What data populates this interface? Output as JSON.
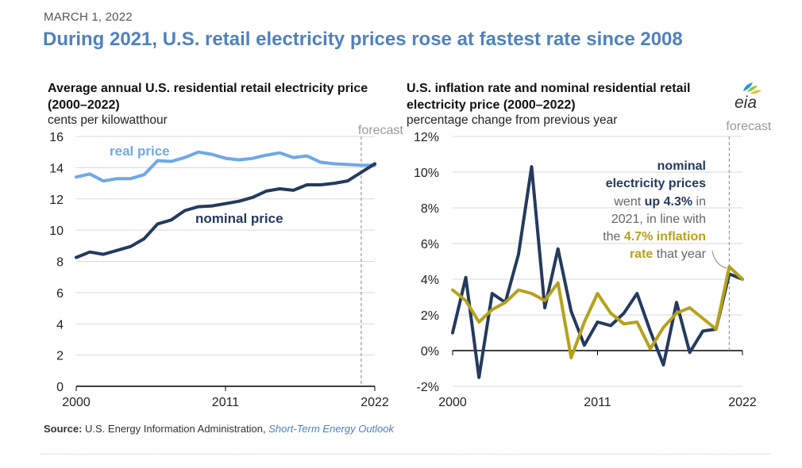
{
  "header": {
    "date": "MARCH 1, 2022",
    "headline": "During 2021, U.S. retail electricity prices rose at fastest rate since 2008"
  },
  "logo": {
    "text": "eia",
    "icon": "eia-logo-icon",
    "colors": [
      "#1f9ad6",
      "#8dc63f",
      "#f7b32b"
    ]
  },
  "source": {
    "label": "Source:",
    "text": "U.S. Energy Information Administration,",
    "publication": "Short-Term Energy Outlook"
  },
  "colors": {
    "headline": "#4f81bd",
    "real": "#6fa8e8",
    "nominal": "#243a5e",
    "inflation": "#b5a21a",
    "forecast": "#999999"
  },
  "chart_data": [
    {
      "type": "line",
      "title": "Average annual U.S. residential retail electricity price (2000–2022)",
      "subtitle": "cents per kilowatthour",
      "ylim": [
        0,
        16
      ],
      "yticks": [
        0,
        2,
        4,
        6,
        8,
        10,
        12,
        14,
        16
      ],
      "xlim": [
        2000,
        2022
      ],
      "xticks": [
        2000,
        2011,
        2022
      ],
      "grid": true,
      "forecast_year": 2021,
      "forecast_label": "forecast",
      "x": [
        2000,
        2001,
        2002,
        2003,
        2004,
        2005,
        2006,
        2007,
        2008,
        2009,
        2010,
        2011,
        2012,
        2013,
        2014,
        2015,
        2016,
        2017,
        2018,
        2019,
        2020,
        2021,
        2022
      ],
      "series": [
        {
          "name": "real price",
          "label_text": "real price",
          "values": [
            13.4,
            13.6,
            13.15,
            13.3,
            13.3,
            13.55,
            14.45,
            14.4,
            14.65,
            15.0,
            14.85,
            14.6,
            14.5,
            14.6,
            14.8,
            14.95,
            14.65,
            14.75,
            14.35,
            14.25,
            14.2,
            14.15,
            14.15
          ]
        },
        {
          "name": "nominal price",
          "label_text": "nominal price",
          "values": [
            8.25,
            8.6,
            8.45,
            8.7,
            8.95,
            9.45,
            10.4,
            10.65,
            11.25,
            11.5,
            11.55,
            11.7,
            11.85,
            12.1,
            12.5,
            12.65,
            12.55,
            12.9,
            12.9,
            13.0,
            13.15,
            13.7,
            14.25
          ]
        }
      ]
    },
    {
      "type": "line",
      "title": "U.S. inflation rate and nominal residential retail electricity price (2000–2022)",
      "subtitle": "percentage change from previous year",
      "ylim": [
        -2,
        12
      ],
      "yticks": [
        "-2%",
        "0%",
        "2%",
        "4%",
        "6%",
        "8%",
        "10%",
        "12%"
      ],
      "ytick_values": [
        -2,
        0,
        2,
        4,
        6,
        8,
        10,
        12
      ],
      "xlim": [
        2000,
        2022
      ],
      "xticks": [
        2000,
        2011,
        2022
      ],
      "grid": true,
      "forecast_year": 2021,
      "forecast_label": "forecast",
      "x": [
        2000,
        2001,
        2002,
        2003,
        2004,
        2005,
        2006,
        2007,
        2008,
        2009,
        2010,
        2011,
        2012,
        2013,
        2014,
        2015,
        2016,
        2017,
        2018,
        2019,
        2020,
        2021,
        2022
      ],
      "series": [
        {
          "name": "nominal electricity prices",
          "values": [
            1.0,
            4.1,
            -1.5,
            3.2,
            2.7,
            5.4,
            10.3,
            2.4,
            5.7,
            2.2,
            0.3,
            1.6,
            1.4,
            2.1,
            3.2,
            1.1,
            -0.8,
            2.7,
            -0.1,
            1.1,
            1.2,
            4.3,
            4.0
          ]
        },
        {
          "name": "inflation rate",
          "values": [
            3.4,
            2.8,
            1.6,
            2.3,
            2.7,
            3.4,
            3.2,
            2.8,
            3.8,
            -0.4,
            1.6,
            3.2,
            2.1,
            1.5,
            1.6,
            0.1,
            1.3,
            2.1,
            2.4,
            1.8,
            1.2,
            4.7,
            4.0
          ]
        }
      ],
      "annotation": {
        "l1": "nominal",
        "l2": "electricity prices",
        "l3a": "went ",
        "l3b": "up 4.3%",
        "l3c": " in",
        "l4": "2021, in line with",
        "l5a": "the ",
        "l5b": "4.7% inflation",
        "l6a": "rate",
        "l6b": " that year"
      }
    }
  ]
}
